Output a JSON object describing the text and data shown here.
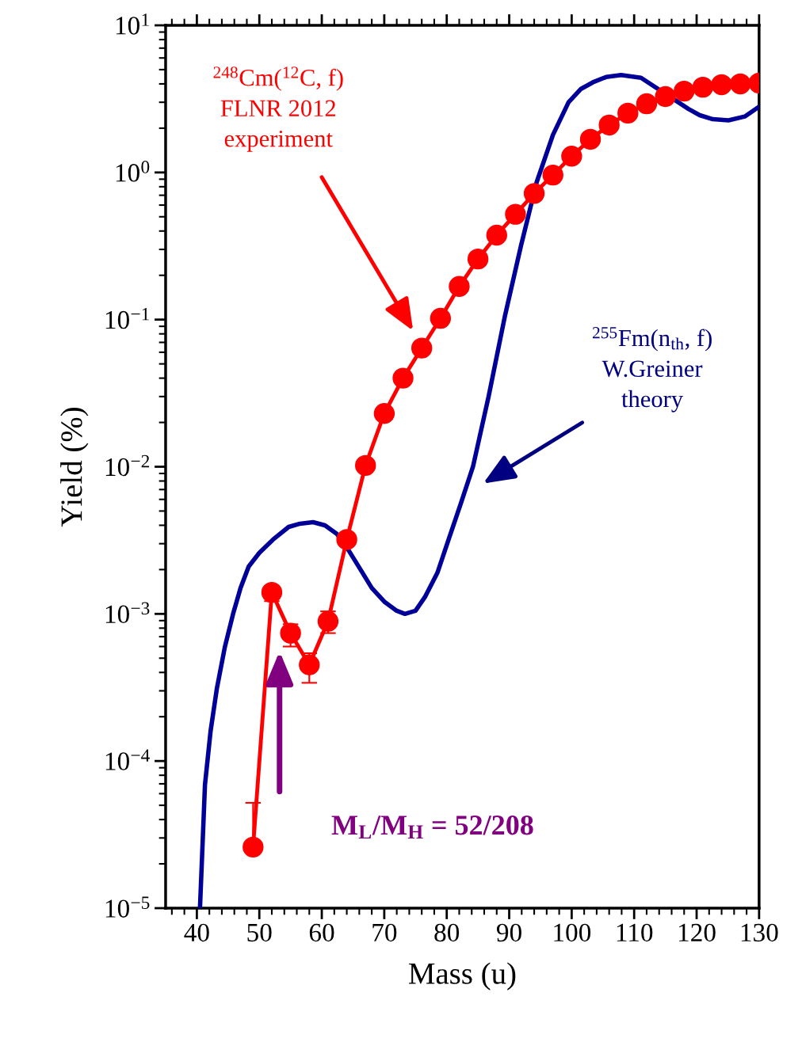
{
  "chart_data": {
    "type": "line",
    "xlabel": "Mass (u)",
    "ylabel": "Yield (%)",
    "log": "y",
    "grid": false,
    "legend": false,
    "xlim": [
      35,
      130
    ],
    "xticks": [
      40,
      50,
      60,
      70,
      80,
      90,
      100,
      110,
      120,
      130
    ],
    "ylim": [
      1e-05,
      10
    ],
    "yticks": [
      {
        "value": 1e-05,
        "label": "10$^{−5}$"
      },
      {
        "value": 0.0001,
        "label": "10$^{−4}$"
      },
      {
        "value": 0.001,
        "label": "10$^{−3}$"
      },
      {
        "value": 0.01,
        "label": "10$^{−2}$"
      },
      {
        "value": 0.1,
        "label": "10$^{−1}$"
      },
      {
        "value": 1,
        "label": "10$^{0}$"
      },
      {
        "value": 10,
        "label": "10$^{1}$"
      }
    ],
    "series": [
      {
        "color": "#000099",
        "marker": "none",
        "line_style": "solid",
        "x": [
          40.5,
          41.3,
          42.2,
          43.2,
          44.5,
          45.8,
          47,
          48.3,
          50,
          52.2,
          54.7,
          56.5,
          58.6,
          60.5,
          62.4,
          64.3,
          66.2,
          68,
          70.1,
          72,
          73.3,
          75,
          76.5,
          78.5,
          80.3,
          82.3,
          84.2,
          86.7,
          89.3,
          91.9,
          94.4,
          97,
          99.5,
          101.5,
          103.4,
          105.5,
          107.9,
          111.1,
          118.7,
          120.5,
          122.6,
          125.1,
          127.7,
          130
        ],
        "values": [
          1e-05,
          6.9e-05,
          0.00016,
          0.00031,
          0.0006,
          0.001,
          0.0015,
          0.0021,
          0.0026,
          0.0032,
          0.0039,
          0.0041,
          0.0042,
          0.004,
          0.0035,
          0.0027,
          0.002,
          0.0015,
          0.0012,
          0.00105,
          0.001,
          0.00105,
          0.0013,
          0.0019,
          0.0032,
          0.0057,
          0.01,
          0.03,
          0.105,
          0.32,
          0.86,
          1.8,
          3.0,
          3.7,
          4.1,
          4.45,
          4.6,
          4.4,
          2.7,
          2.45,
          2.3,
          2.26,
          2.4,
          2.8
        ]
      },
      {
        "color": "#ff0000",
        "marker": "circle",
        "line_style": "solid",
        "x": [
          49,
          52,
          55,
          58,
          61,
          64,
          67,
          70,
          73,
          76,
          79,
          82,
          85,
          88,
          91,
          94,
          97,
          100,
          103,
          106,
          109,
          112,
          115,
          118,
          121,
          124,
          127,
          130
        ],
        "values": [
          2.6e-05,
          0.0014,
          0.00074,
          0.00045,
          0.00089,
          0.0032,
          0.0102,
          0.023,
          0.04,
          0.064,
          0.102,
          0.168,
          0.258,
          0.375,
          0.52,
          0.72,
          0.96,
          1.29,
          1.68,
          2.1,
          2.53,
          2.93,
          3.28,
          3.57,
          3.8,
          3.95,
          4.0,
          4.05
        ],
        "errors": [
          [
            2.6e-05,
            5.2e-05
          ],
          [
            0.00122,
            0.0014
          ],
          [
            0.0006,
            0.00085
          ],
          [
            0.00034,
            0.00054
          ],
          [
            0.00074,
            0.00104
          ],
          null,
          null,
          null,
          null,
          null,
          null,
          null,
          null,
          null,
          null,
          null,
          null,
          null,
          null,
          null,
          null,
          null,
          null,
          null,
          null,
          null,
          null,
          null
        ]
      }
    ],
    "annotations": [
      "$^{248}$Cm($^{12}$C, f)\nFLNR 2012\nexperiment",
      "$^{255}$Fm(n$_{th}$, f)\nW.Greiner\ntheory",
      "M$_{L}$/M$_{H}$ = 52/208"
    ]
  }
}
